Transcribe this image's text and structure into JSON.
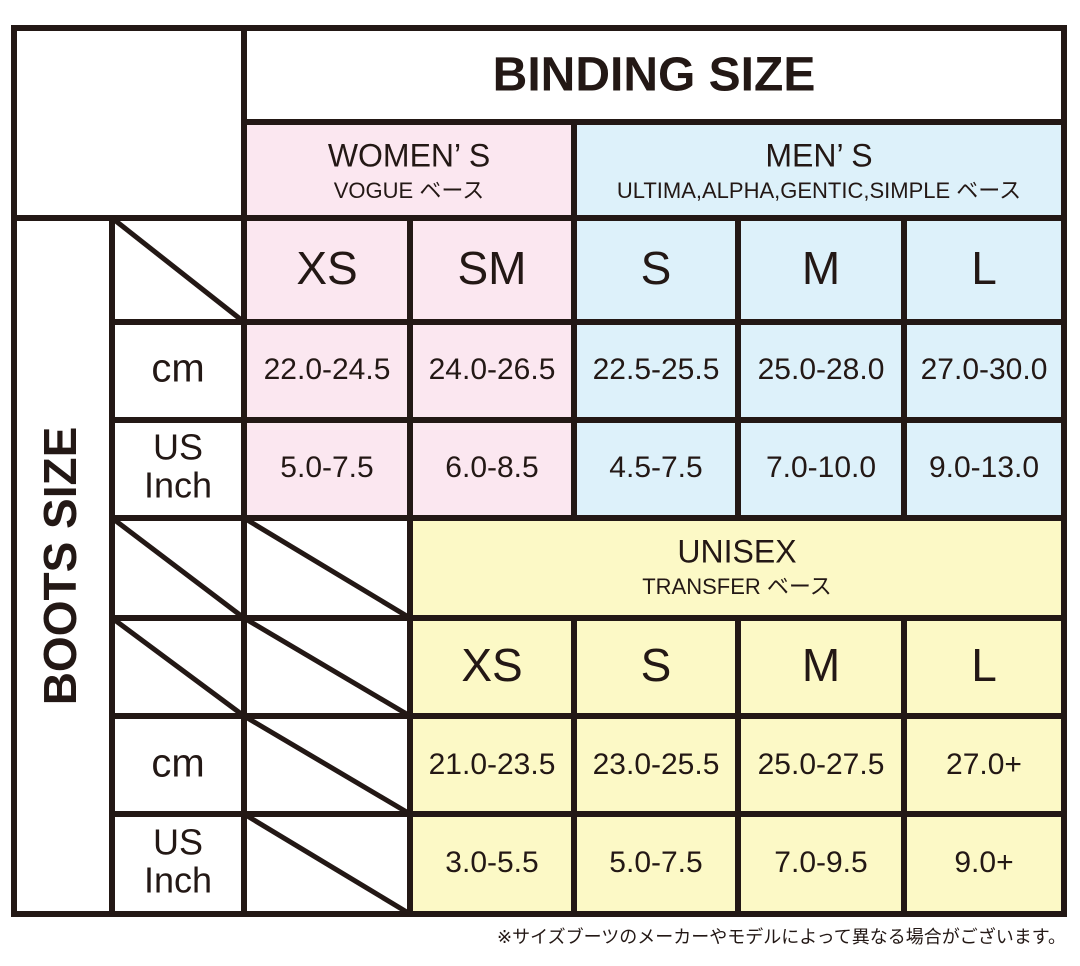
{
  "header": {
    "title": "BINDING SIZE",
    "side_title": "BOOTS SIZE"
  },
  "top": {
    "groups": [
      {
        "name": "WOMEN’ S",
        "base": "VOGUE ベース"
      },
      {
        "name": "MEN’ S",
        "base": "ULTIMA,ALPHA,GENTIC,SIMPLE ベース"
      }
    ],
    "sizes": [
      "XS",
      "SM",
      "S",
      "M",
      "L"
    ],
    "rows": [
      {
        "label": [
          "cm"
        ],
        "values": [
          "22.0-24.5",
          "24.0-26.5",
          "22.5-25.5",
          "25.0-28.0",
          "27.0-30.0"
        ]
      },
      {
        "label": [
          "US",
          "Inch"
        ],
        "values": [
          "5.0-7.5",
          "6.0-8.5",
          "4.5-7.5",
          "7.0-10.0",
          "9.0-13.0"
        ]
      }
    ]
  },
  "bottom": {
    "group": {
      "name": "UNISEX",
      "base": "TRANSFER ベース"
    },
    "sizes": [
      "XS",
      "S",
      "M",
      "L"
    ],
    "rows": [
      {
        "label": [
          "cm"
        ],
        "values": [
          "21.0-23.5",
          "23.0-25.5",
          "25.0-27.5",
          "27.0+"
        ]
      },
      {
        "label": [
          "US",
          "Inch"
        ],
        "values": [
          "3.0-5.5",
          "5.0-7.5",
          "7.0-9.5",
          "9.0+"
        ]
      }
    ]
  },
  "note": "※サイズブーツのメーカーやモデルによって異なる場合がございます。"
}
